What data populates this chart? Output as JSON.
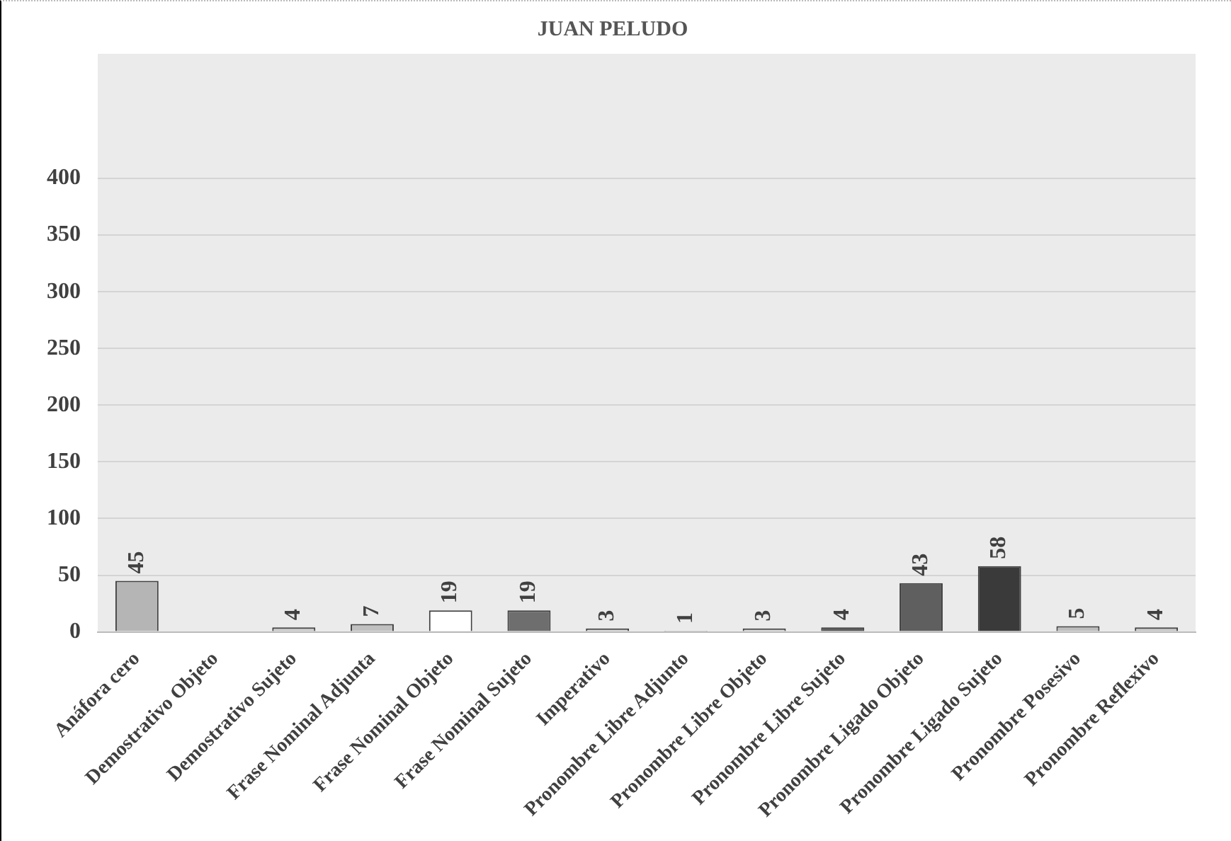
{
  "chart_data": {
    "type": "bar",
    "title": "JUAN PELUDO",
    "categories": [
      "Anáfora cero",
      "Demostrativo Objeto",
      "Demostrativo Sujeto",
      "Frase Nominal Adjunta",
      "Frase Nominal Objeto",
      "Frase Nominal Sujeto",
      "Imperativo",
      "Pronombre Libre Adjunto",
      "Pronombre Libre Objeto",
      "Pronombre Libre Sujeto",
      "Pronombre Ligado Objeto",
      "Pronombre Ligado Sujeto",
      "Pronombre Posesivo",
      "Pronombre Reflexivo"
    ],
    "values": [
      45,
      0,
      4,
      7,
      19,
      19,
      3,
      1,
      3,
      4,
      43,
      58,
      5,
      4
    ],
    "value_labels": [
      "45",
      null,
      "4",
      "7",
      "19",
      "19",
      "3",
      "1",
      "3",
      "4",
      "43",
      "58",
      "5",
      "4"
    ],
    "colors": [
      "#b5b5b5",
      "#cccccc",
      "#c8c8c8",
      "#c0c0c0",
      "#ffffff",
      "#6e6e6e",
      "#d0d0d0",
      "#d0d0d0",
      "#d0d0d0",
      "#555555",
      "#5f5f5f",
      "#3a3a3a",
      "#bdbdbd",
      "#c4c4c4"
    ],
    "ylim": [
      0,
      510
    ],
    "yticks": [
      0,
      50,
      100,
      150,
      200,
      250,
      300,
      350,
      400
    ],
    "grid": "y",
    "legend": false
  }
}
